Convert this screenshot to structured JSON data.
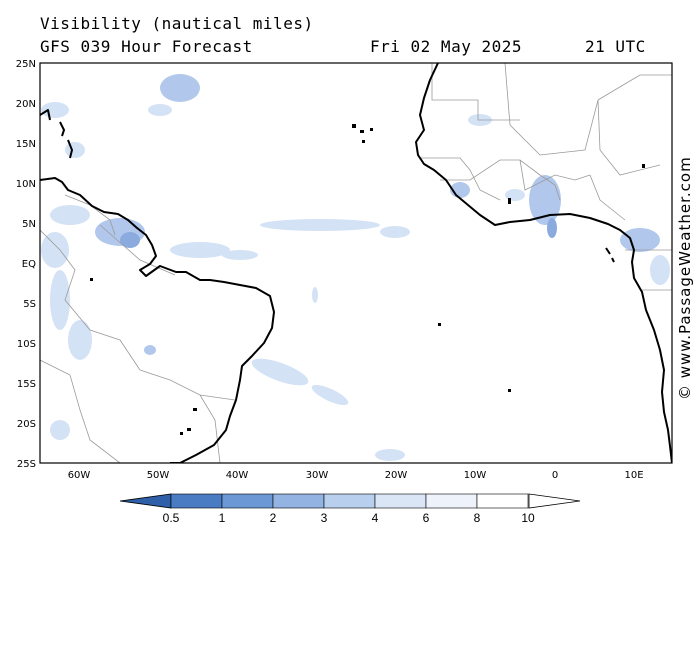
{
  "header": {
    "title": "Visibility (nautical miles)",
    "subtitle": "GFS 039 Hour Forecast",
    "date": "Fri 02 May 2025",
    "time": "21 UTC"
  },
  "credit": "© www.PassageWeather.com",
  "axes": {
    "lat_labels": [
      "25N",
      "20N",
      "15N",
      "10N",
      "5N",
      "EQ",
      "5S",
      "10S",
      "15S",
      "20S",
      "25S"
    ],
    "lon_labels": [
      "60W",
      "50W",
      "40W",
      "30W",
      "20W",
      "10W",
      "0",
      "10E"
    ]
  },
  "colorbar": {
    "labels": [
      "0.5",
      "1",
      "2",
      "3",
      "4",
      "6",
      "8",
      "10"
    ],
    "colors": [
      "#2e5fa8",
      "#4a7cc4",
      "#6d98d6",
      "#93b4e2",
      "#b8cfee",
      "#dae6f6",
      "#eef3fb",
      "#ffffff"
    ]
  },
  "colors": {
    "land_line": "#000000",
    "border": "#9a9a9a",
    "fog_dark": "#7fa3db",
    "fog_light": "#cfdff5"
  }
}
